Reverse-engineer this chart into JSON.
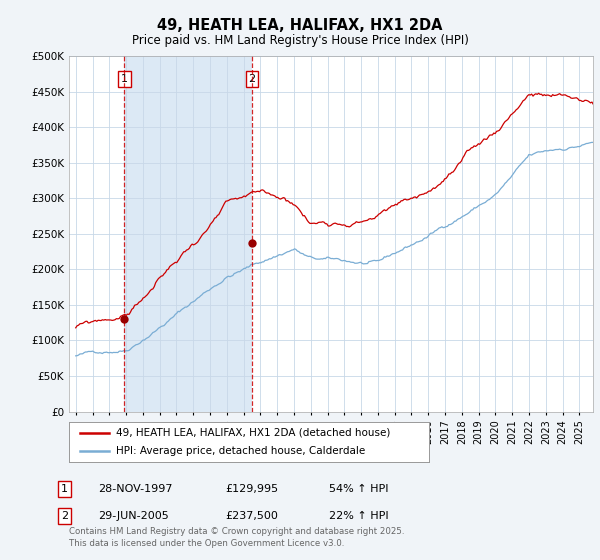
{
  "title": "49, HEATH LEA, HALIFAX, HX1 2DA",
  "subtitle": "Price paid vs. HM Land Registry's House Price Index (HPI)",
  "legend_line1": "49, HEATH LEA, HALIFAX, HX1 2DA (detached house)",
  "legend_line2": "HPI: Average price, detached house, Calderdale",
  "transaction1_label": "1",
  "transaction1_date": "28-NOV-1997",
  "transaction1_price": "£129,995",
  "transaction1_hpi": "54% ↑ HPI",
  "transaction1_year": 1997.9,
  "transaction1_value": 129995,
  "transaction2_label": "2",
  "transaction2_date": "29-JUN-2005",
  "transaction2_price": "£237,500",
  "transaction2_hpi": "22% ↑ HPI",
  "transaction2_year": 2005.5,
  "transaction2_value": 237500,
  "hpi_color": "#7aadd4",
  "price_color": "#cc0000",
  "marker_color": "#990000",
  "vline_color": "#cc0000",
  "shade_color": "#dce9f5",
  "background_color": "#f0f4f8",
  "plot_bg_color": "#ffffff",
  "grid_color": "#c8d8e8",
  "ylim": [
    0,
    500000
  ],
  "footer": "Contains HM Land Registry data © Crown copyright and database right 2025.\nThis data is licensed under the Open Government Licence v3.0."
}
